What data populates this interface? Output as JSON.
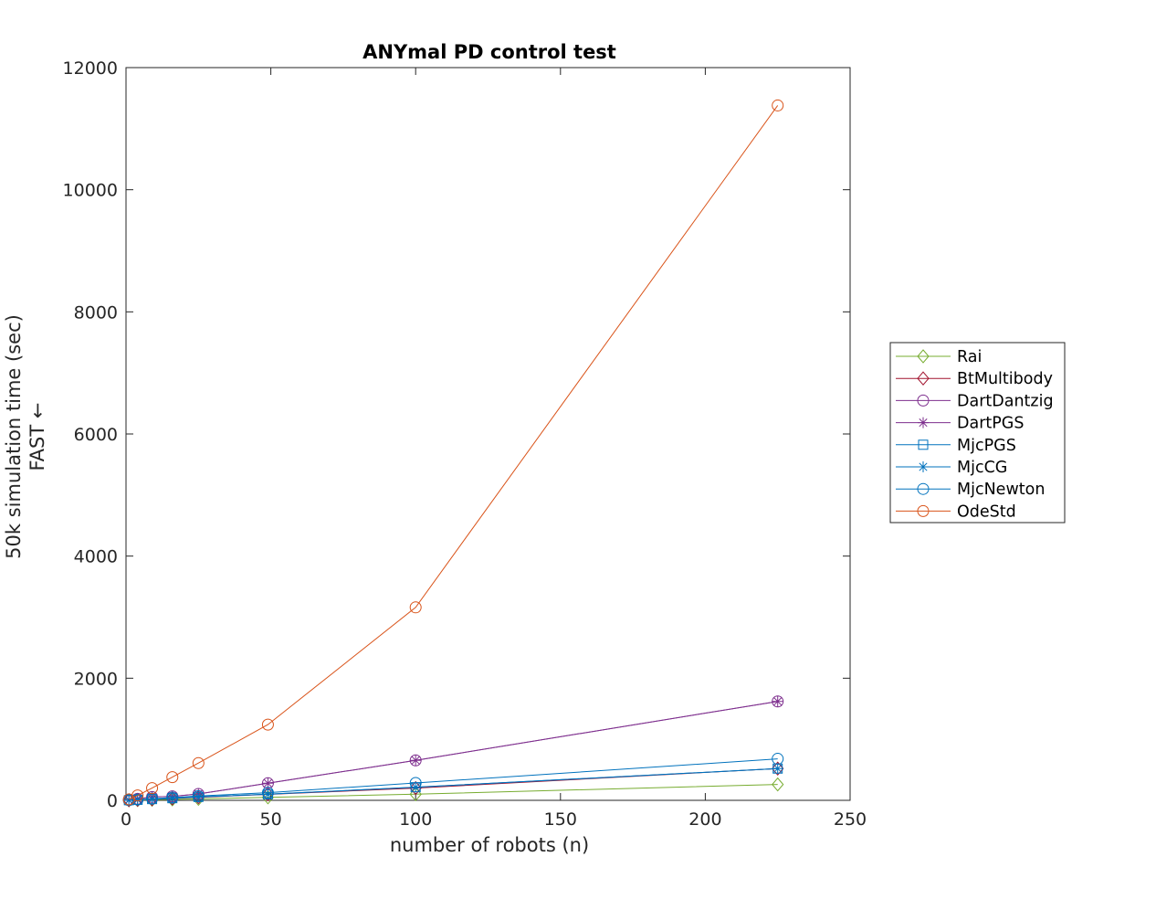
{
  "chart_data": {
    "type": "line",
    "title": "ANYmal PD control test",
    "xlabel": "number of robots (n)",
    "ylabel_lines": [
      "50k simulation time (sec)",
      "FAST ←"
    ],
    "xlim": [
      0,
      250
    ],
    "ylim": [
      0,
      12000
    ],
    "xticks": [
      0,
      50,
      100,
      150,
      200,
      250
    ],
    "yticks": [
      0,
      2000,
      4000,
      6000,
      8000,
      10000,
      12000
    ],
    "grid": false,
    "legend_position": "outside-right",
    "x": [
      1,
      4,
      9,
      16,
      25,
      49,
      100,
      225
    ],
    "series": [
      {
        "name": "Rai",
        "marker": "diamond",
        "color": "#77ac30",
        "values": [
          1,
          4,
          9,
          15,
          24,
          48,
          100,
          260
        ]
      },
      {
        "name": "BtMultibody",
        "marker": "diamond",
        "color": "#a2142f",
        "values": [
          2,
          8,
          18,
          32,
          50,
          98,
          200,
          520
        ]
      },
      {
        "name": "DartDantzig",
        "marker": "circle",
        "color": "#7e2f8e",
        "values": [
          6,
          24,
          55,
          65,
          105,
          280,
          655,
          1620
        ]
      },
      {
        "name": "DartPGS",
        "marker": "asterisk",
        "color": "#7e2f8e",
        "values": [
          6,
          24,
          55,
          65,
          105,
          280,
          655,
          1620
        ]
      },
      {
        "name": "MjcPGS",
        "marker": "square",
        "color": "#0072bd",
        "values": [
          2,
          9,
          20,
          35,
          55,
          100,
          215,
          520
        ]
      },
      {
        "name": "MjcCG",
        "marker": "asterisk",
        "color": "#0072bd",
        "values": [
          2,
          9,
          20,
          35,
          55,
          100,
          215,
          520
        ]
      },
      {
        "name": "MjcNewton",
        "marker": "circle",
        "color": "#0072bd",
        "values": [
          3,
          12,
          27,
          45,
          70,
          125,
          285,
          680
        ]
      },
      {
        "name": "OdeStd",
        "marker": "circle",
        "color": "#d95319",
        "values": [
          15,
          80,
          200,
          380,
          610,
          1240,
          3160,
          11380
        ]
      }
    ]
  }
}
